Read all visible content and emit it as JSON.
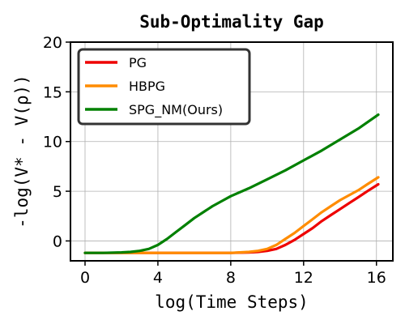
{
  "chart_data": {
    "type": "line",
    "title": "Sub-Optimality Gap",
    "xlabel": "log(Time Steps)",
    "ylabel": "-log(V* - V(ρ))",
    "xlim": [
      -0.8,
      16.9
    ],
    "ylim": [
      -2,
      20
    ],
    "xticks": [
      0,
      4,
      8,
      12,
      16
    ],
    "yticks": [
      0,
      5,
      10,
      15,
      20
    ],
    "grid": true,
    "legend_position": "top-left",
    "series": [
      {
        "name": "PG",
        "color": "#ee0000",
        "x": [
          0,
          2,
          4,
          6,
          8,
          9,
          9.5,
          10,
          10.5,
          11,
          11.5,
          12,
          12.5,
          13,
          13.5,
          14,
          14.5,
          15,
          15.5,
          16.1
        ],
        "y": [
          -1.2,
          -1.2,
          -1.2,
          -1.2,
          -1.2,
          -1.15,
          -1.1,
          -1.0,
          -0.8,
          -0.4,
          0.1,
          0.7,
          1.3,
          2.0,
          2.6,
          3.2,
          3.8,
          4.4,
          5.0,
          5.7
        ]
      },
      {
        "name": "HBPG",
        "color": "#ff8c00",
        "x": [
          0,
          2,
          4,
          6,
          8,
          8.5,
          9,
          9.5,
          10,
          10.5,
          11,
          11.5,
          12,
          12.5,
          13,
          13.5,
          14,
          14.5,
          15,
          15.5,
          16.1
        ],
        "y": [
          -1.2,
          -1.2,
          -1.2,
          -1.2,
          -1.2,
          -1.15,
          -1.1,
          -1.0,
          -0.8,
          -0.4,
          0.2,
          0.8,
          1.5,
          2.2,
          2.9,
          3.5,
          4.1,
          4.6,
          5.1,
          5.7,
          6.4
        ]
      },
      {
        "name": "SPG_NM(Ours)",
        "color": "#008000",
        "x": [
          0,
          1,
          2,
          2.5,
          3,
          3.5,
          4,
          4.5,
          5,
          5.5,
          6,
          6.5,
          7,
          7.5,
          8,
          9,
          10,
          11,
          12,
          13,
          14,
          15,
          16.1
        ],
        "y": [
          -1.2,
          -1.2,
          -1.15,
          -1.1,
          -1.0,
          -0.8,
          -0.4,
          0.2,
          0.9,
          1.6,
          2.3,
          2.9,
          3.5,
          4.0,
          4.5,
          5.3,
          6.2,
          7.1,
          8.1,
          9.1,
          10.2,
          11.3,
          12.7
        ]
      }
    ]
  }
}
